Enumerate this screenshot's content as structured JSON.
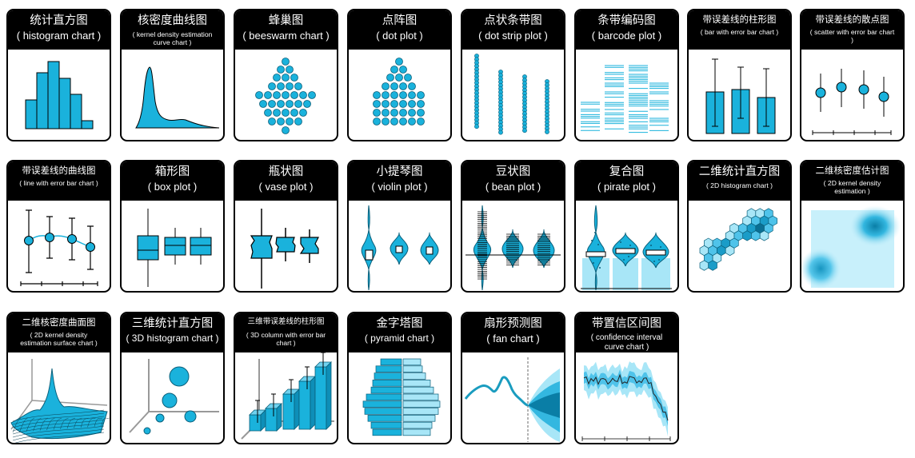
{
  "colors": {
    "accent": "#1ab2dc",
    "light": "#a8e6f7",
    "dark": "#0d7fa3",
    "line": "#000000"
  },
  "cards": [
    {
      "title": "统计直方图",
      "subtitle": "( histogram chart )",
      "icon": "histogram-icon"
    },
    {
      "title": "核密度曲线图",
      "subtitle": "( kernel density estimation curve chart )",
      "icon": "kde-curve-icon"
    },
    {
      "title": "蜂巢图",
      "subtitle": "( beeswarm chart )",
      "icon": "beeswarm-icon"
    },
    {
      "title": "点阵图",
      "subtitle": "( dot plot )",
      "icon": "dot-plot-icon"
    },
    {
      "title": "点状条带图",
      "subtitle": "( dot strip plot )",
      "icon": "dot-strip-icon"
    },
    {
      "title": "条带编码图",
      "subtitle": "( barcode plot )",
      "icon": "barcode-icon"
    },
    {
      "title": "带误差线的柱形图",
      "subtitle": "( bar with error bar chart )",
      "icon": "bar-error-icon"
    },
    {
      "title": "带误差线的散点图",
      "subtitle": "( scatter with error bar chart )",
      "icon": "scatter-error-icon"
    },
    {
      "title": "带误差线的曲线图",
      "subtitle": "( line with error bar chart )",
      "icon": "line-error-icon"
    },
    {
      "title": "箱形图",
      "subtitle": "( box plot )",
      "icon": "box-plot-icon"
    },
    {
      "title": "瓶状图",
      "subtitle": "( vase plot )",
      "icon": "vase-plot-icon"
    },
    {
      "title": "小提琴图",
      "subtitle": "( violin plot )",
      "icon": "violin-plot-icon"
    },
    {
      "title": "豆状图",
      "subtitle": "( bean plot )",
      "icon": "bean-plot-icon"
    },
    {
      "title": "复合图",
      "subtitle": "( pirate plot )",
      "icon": "pirate-plot-icon"
    },
    {
      "title": "二维统计直方图",
      "subtitle": "( 2D histogram chart )",
      "icon": "hexbin-icon"
    },
    {
      "title": "二维核密度估计图",
      "subtitle": "( 2D kernel density estimation )",
      "icon": "kde2d-icon"
    },
    {
      "title": "二维核密度曲面图",
      "subtitle": "( 2D kernel density estimation surface chart )",
      "icon": "surface-icon"
    },
    {
      "title": "三维统计直方图",
      "subtitle": "( 3D histogram chart )",
      "icon": "bubble3d-icon"
    },
    {
      "title": "三维带误差线的柱形图",
      "subtitle": "( 3D column with error bar chart )",
      "icon": "column3d-icon"
    },
    {
      "title": "金字塔图",
      "subtitle": "( pyramid chart )",
      "icon": "pyramid-icon"
    },
    {
      "title": "扇形预测图",
      "subtitle": "( fan chart )",
      "icon": "fan-chart-icon"
    },
    {
      "title": "带置信区间图",
      "subtitle": "( confidence interval curve chart )",
      "icon": "ci-curve-icon"
    }
  ]
}
